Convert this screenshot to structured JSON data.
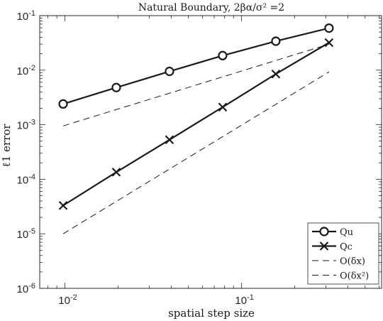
{
  "chart_data": {
    "type": "line",
    "title": "Natural Boundary, 2βα/σ² =2",
    "xlabel": "spatial step size",
    "ylabel": "ℓ1 error",
    "xscale": "log",
    "yscale": "log",
    "xlim": [
      0.0072,
      0.62
    ],
    "ylim": [
      1e-06,
      0.1
    ],
    "grid": false,
    "legend_position": "bottom-right",
    "x_ticks": [
      {
        "value": 0.01,
        "base": "10",
        "exp": "-2"
      },
      {
        "value": 0.1,
        "base": "10",
        "exp": "-1"
      }
    ],
    "y_ticks": [
      {
        "value": 1e-06,
        "base": "10",
        "exp": "-6"
      },
      {
        "value": 1e-05,
        "base": "10",
        "exp": "-5"
      },
      {
        "value": 0.0001,
        "base": "10",
        "exp": "-4"
      },
      {
        "value": 0.001,
        "base": "10",
        "exp": "-3"
      },
      {
        "value": 0.01,
        "base": "10",
        "exp": "-2"
      },
      {
        "value": 0.1,
        "base": "10",
        "exp": "-1"
      }
    ],
    "series": [
      {
        "name": "Qu",
        "marker": "circle",
        "style": "solid",
        "x": [
          0.00977,
          0.01953,
          0.03906,
          0.07813,
          0.15625,
          0.3125
        ],
        "y": [
          0.0024,
          0.0048,
          0.0095,
          0.0185,
          0.034,
          0.059
        ]
      },
      {
        "name": "Qc",
        "marker": "x",
        "style": "solid",
        "x": [
          0.00977,
          0.01953,
          0.03906,
          0.07813,
          0.15625,
          0.3125
        ],
        "y": [
          3.3e-05,
          0.000135,
          0.00053,
          0.0021,
          0.0085,
          0.032
        ]
      },
      {
        "name": "O(δx)",
        "marker": "none",
        "style": "dashed",
        "x": [
          0.00977,
          0.3125
        ],
        "y": [
          0.00095,
          0.03
        ]
      },
      {
        "name": "O(δx²)",
        "marker": "none",
        "style": "dashed",
        "x": [
          0.00977,
          0.3125
        ],
        "y": [
          1e-05,
          0.0093
        ]
      }
    ],
    "colors": {
      "line": "#1a1a1a",
      "axis": "#262626",
      "background": "#ffffff"
    }
  }
}
